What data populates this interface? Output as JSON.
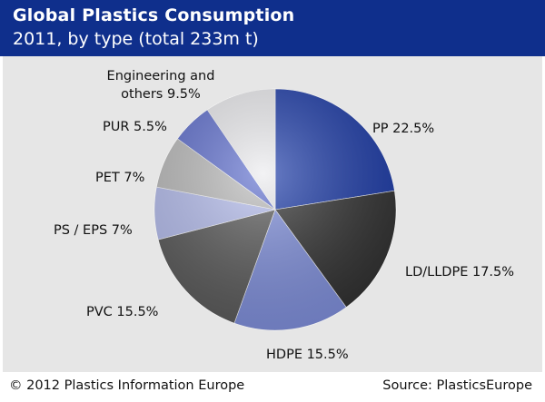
{
  "header": {
    "title": "Global Plastics Consumption",
    "subtitle": "2011, by type (total 233m t)"
  },
  "footer": {
    "copyright": "© 2012 Plastics Information Europe",
    "source": "Source: PlasticsEurope"
  },
  "colors": {
    "header_background": "#0f2f8c",
    "panel_background": "#e6e6e6"
  },
  "chart_data": {
    "type": "pie",
    "title": "Global Plastics Consumption",
    "subtitle": "2011, by type (total 233m t)",
    "unit": "%",
    "slices": [
      {
        "name": "PP",
        "value": 22.5,
        "label": "PP 22.5%",
        "color": "#1b3aa8",
        "label_lines": [
          "PP 22.5%"
        ]
      },
      {
        "name": "LD/LLDPE",
        "value": 17.5,
        "label": "LD/LLDPE 17.5%",
        "color": "#303030",
        "label_lines": [
          "LD/LLDPE 17.5%"
        ]
      },
      {
        "name": "HDPE",
        "value": 15.5,
        "label": "HDPE 15.5%",
        "color": "#7f8fdc",
        "label_lines": [
          "HDPE 15.5%"
        ]
      },
      {
        "name": "PVC",
        "value": 15.5,
        "label": "PVC 15.5%",
        "color": "#5a5a5a",
        "label_lines": [
          "PVC 15.5%"
        ]
      },
      {
        "name": "PS / EPS",
        "value": 7,
        "label": "PS / EPS 7%",
        "color": "#b7bff0",
        "label_lines": [
          "PS / EPS 7%"
        ]
      },
      {
        "name": "PET",
        "value": 7,
        "label": "PET 7%",
        "color": "#bdbdbd",
        "label_lines": [
          "PET 7%"
        ]
      },
      {
        "name": "PUR",
        "value": 5.5,
        "label": "PUR 5.5%",
        "color": "#6070d0",
        "label_lines": [
          "PUR 5.5%"
        ]
      },
      {
        "name": "Engineering and others",
        "value": 9.5,
        "label": "Engineering and others 9.5%",
        "color": "#ececef",
        "label_lines": [
          "Engineering and",
          "others 9.5%"
        ]
      }
    ]
  }
}
